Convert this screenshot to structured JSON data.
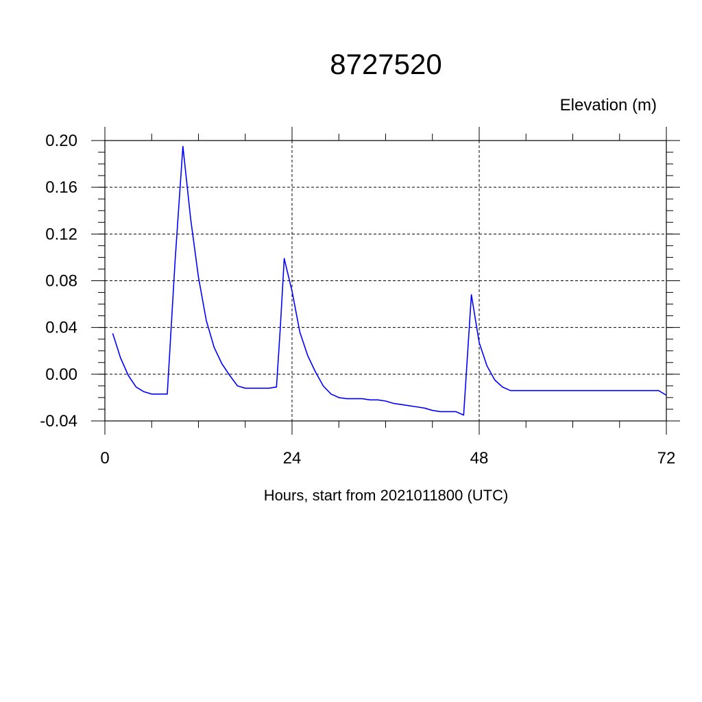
{
  "chart_data": {
    "type": "line",
    "title": "8727520",
    "unit_label": "Elevation (m)",
    "xlabel": "Hours, start from 2021011800 (UTC)",
    "ylabel": "",
    "xlim": [
      0,
      72
    ],
    "ylim": [
      -0.04,
      0.2
    ],
    "x_ticks": [
      0,
      24,
      48,
      72
    ],
    "x_tick_labels": [
      "0",
      "24",
      "48",
      "72"
    ],
    "y_ticks": [
      -0.04,
      0.0,
      0.04,
      0.08,
      0.12,
      0.16,
      0.2
    ],
    "y_tick_labels": [
      "-0.04",
      "0.00",
      "0.04",
      "0.08",
      "0.12",
      "0.16",
      "0.20"
    ],
    "grid": true,
    "line_color": "#0000ff",
    "series": [
      {
        "x": [
          1,
          2,
          3,
          4,
          5,
          6,
          7,
          8,
          9,
          10,
          11,
          12,
          13,
          14,
          15,
          16,
          17,
          18,
          19,
          20,
          21,
          22,
          22.5,
          23,
          24,
          25,
          26,
          27,
          28,
          29,
          30,
          31,
          32,
          33,
          34,
          35,
          36,
          37,
          38,
          39,
          40,
          41,
          42,
          43,
          44,
          45,
          46,
          47,
          48,
          49,
          50,
          51,
          52,
          53,
          54,
          55,
          56,
          57,
          58,
          59,
          60,
          61,
          62,
          63,
          64,
          65,
          66,
          67,
          68,
          69,
          70,
          71,
          72
        ],
        "values": [
          0.035,
          0.014,
          -0.001,
          -0.011,
          -0.015,
          -0.017,
          -0.017,
          -0.017,
          0.097,
          0.195,
          0.133,
          0.083,
          0.046,
          0.023,
          0.009,
          -0.001,
          -0.01,
          -0.012,
          -0.012,
          -0.012,
          -0.012,
          -0.011,
          0.04,
          0.099,
          0.071,
          0.036,
          0.016,
          0.002,
          -0.01,
          -0.017,
          -0.02,
          -0.021,
          -0.021,
          -0.021,
          -0.022,
          -0.022,
          -0.023,
          -0.025,
          -0.026,
          -0.027,
          -0.028,
          -0.029,
          -0.031,
          -0.032,
          -0.032,
          -0.032,
          -0.035,
          0.068,
          0.027,
          0.007,
          -0.005,
          -0.011,
          -0.014,
          -0.014,
          -0.014,
          -0.014,
          -0.014,
          -0.014,
          -0.014,
          -0.014,
          -0.014,
          -0.014,
          -0.014,
          -0.014,
          -0.014,
          -0.014,
          -0.014,
          -0.014,
          -0.014,
          -0.014,
          -0.014,
          -0.014,
          -0.018
        ]
      }
    ]
  }
}
